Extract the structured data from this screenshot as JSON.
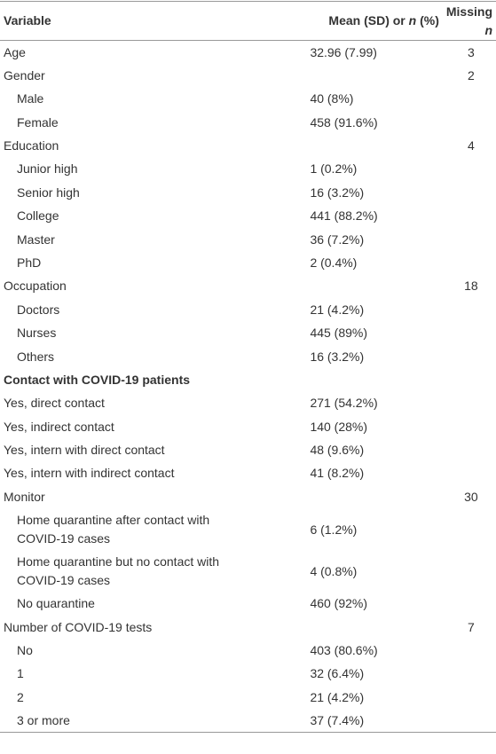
{
  "table": {
    "header": {
      "variable": "Variable",
      "mean": [
        "Mean (SD) or ",
        "n",
        " (%)"
      ],
      "missing": [
        "Missing ",
        "n"
      ]
    },
    "rows": [
      {
        "variable": "Age",
        "value": "32.96 (7.99)",
        "missing": "3"
      },
      {
        "variable": "Gender",
        "missing": "2"
      },
      {
        "variable": "Male",
        "value": "40 (8%)",
        "indent": true
      },
      {
        "variable": "Female",
        "value": "458 (91.6%)",
        "indent": true
      },
      {
        "variable": "Education",
        "missing": "4"
      },
      {
        "variable": "Junior high",
        "value": "1 (0.2%)",
        "indent": true
      },
      {
        "variable": "Senior high",
        "value": "16 (3.2%)",
        "indent": true
      },
      {
        "variable": "College",
        "value": "441 (88.2%)",
        "indent": true
      },
      {
        "variable": "Master",
        "value": "36 (7.2%)",
        "indent": true
      },
      {
        "variable": "PhD",
        "value": "2 (0.4%)",
        "indent": true
      },
      {
        "variable": "Occupation",
        "missing": "18"
      },
      {
        "variable": "Doctors",
        "value": "21 (4.2%)",
        "indent": true
      },
      {
        "variable": "Nurses",
        "value": "445 (89%)",
        "indent": true
      },
      {
        "variable": "Others",
        "value": "16 (3.2%)",
        "indent": true
      },
      {
        "variable": "Contact with COVID-19 patients",
        "bold": true
      },
      {
        "variable": "Yes, direct contact",
        "value": "271 (54.2%)"
      },
      {
        "variable": "Yes, indirect contact",
        "value": "140 (28%)"
      },
      {
        "variable": "Yes, intern with direct contact",
        "value": "48 (9.6%)"
      },
      {
        "variable": "Yes, intern with indirect contact",
        "value": "41 (8.2%)"
      },
      {
        "variable": "Monitor",
        "missing": "30"
      },
      {
        "variable": "Home quarantine after contact with COVID-19 cases",
        "value": "6 (1.2%)",
        "indent": true
      },
      {
        "variable": "Home quarantine but no contact with COVID-19 cases",
        "value": "4 (0.8%)",
        "indent": true
      },
      {
        "variable": "No quarantine",
        "value": "460 (92%)",
        "indent": true
      },
      {
        "variable": "Number of COVID-19 tests",
        "missing": "7"
      },
      {
        "variable": "No",
        "value": "403 (80.6%)",
        "indent": true
      },
      {
        "variable": "1",
        "value": "32 (6.4%)",
        "indent": true
      },
      {
        "variable": "2",
        "value": "21 (4.2%)",
        "indent": true
      },
      {
        "variable": "3 or more",
        "value": "37 (7.4%)",
        "indent": true
      }
    ]
  }
}
